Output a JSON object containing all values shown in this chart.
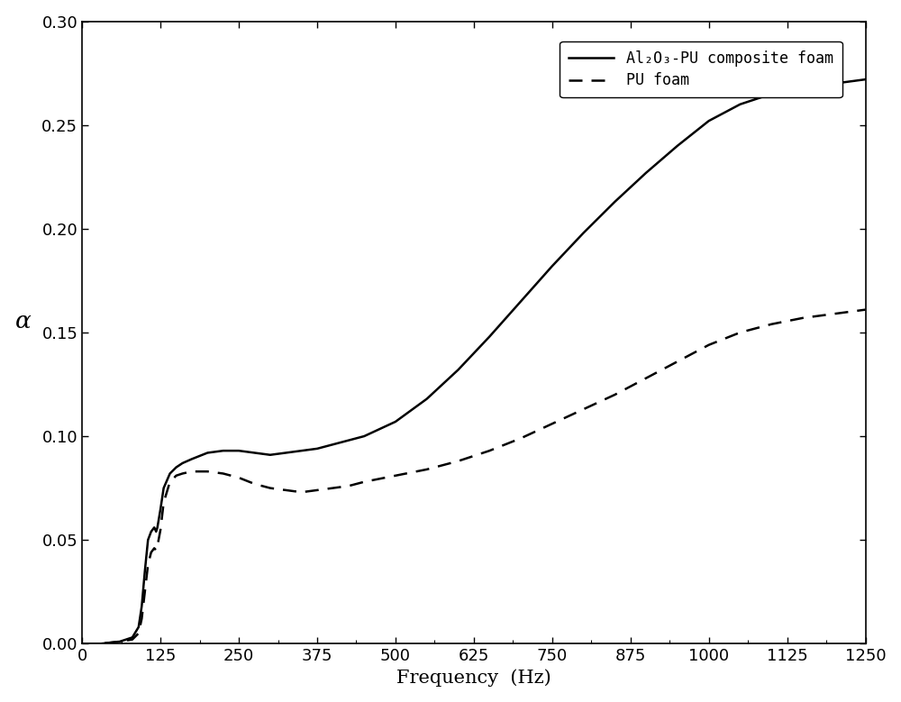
{
  "title": "",
  "xlabel": "Frequency  (Hz)",
  "ylabel": "α",
  "xlim": [
    0,
    1250
  ],
  "ylim": [
    0.0,
    0.3
  ],
  "xticks": [
    0,
    125,
    250,
    375,
    500,
    625,
    750,
    875,
    1000,
    1125,
    1250
  ],
  "yticks": [
    0.0,
    0.05,
    0.1,
    0.15,
    0.2,
    0.25,
    0.3
  ],
  "legend_labels": [
    "Al₂O₃-PU composite foam",
    "PU foam"
  ],
  "line_color": "#000000",
  "background_color": "#ffffff",
  "composite_x": [
    0,
    30,
    60,
    80,
    90,
    95,
    100,
    105,
    110,
    115,
    118,
    120,
    125,
    130,
    140,
    150,
    160,
    175,
    200,
    225,
    250,
    275,
    300,
    325,
    350,
    375,
    400,
    425,
    450,
    500,
    550,
    600,
    650,
    700,
    750,
    800,
    850,
    900,
    950,
    1000,
    1050,
    1100,
    1150,
    1200,
    1250
  ],
  "composite_y": [
    0.0,
    0.0,
    0.001,
    0.003,
    0.008,
    0.018,
    0.035,
    0.05,
    0.054,
    0.056,
    0.054,
    0.056,
    0.065,
    0.075,
    0.082,
    0.085,
    0.087,
    0.089,
    0.092,
    0.093,
    0.093,
    0.092,
    0.091,
    0.092,
    0.093,
    0.094,
    0.096,
    0.098,
    0.1,
    0.107,
    0.118,
    0.132,
    0.148,
    0.165,
    0.182,
    0.198,
    0.213,
    0.227,
    0.24,
    0.252,
    0.26,
    0.265,
    0.268,
    0.27,
    0.272
  ],
  "pu_x": [
    0,
    30,
    60,
    80,
    90,
    95,
    100,
    105,
    110,
    115,
    118,
    120,
    125,
    130,
    140,
    150,
    160,
    175,
    200,
    225,
    250,
    275,
    300,
    325,
    350,
    375,
    400,
    425,
    450,
    500,
    550,
    600,
    650,
    700,
    750,
    800,
    850,
    900,
    950,
    1000,
    1050,
    1100,
    1150,
    1200,
    1250
  ],
  "pu_y": [
    0.0,
    0.0,
    0.001,
    0.002,
    0.005,
    0.012,
    0.025,
    0.038,
    0.044,
    0.046,
    0.045,
    0.047,
    0.055,
    0.068,
    0.078,
    0.081,
    0.082,
    0.083,
    0.083,
    0.082,
    0.08,
    0.077,
    0.075,
    0.074,
    0.073,
    0.074,
    0.075,
    0.076,
    0.078,
    0.081,
    0.084,
    0.088,
    0.093,
    0.099,
    0.106,
    0.113,
    0.12,
    0.128,
    0.136,
    0.144,
    0.15,
    0.154,
    0.157,
    0.159,
    0.161
  ],
  "linewidth": 1.8,
  "fontsize_label": 15,
  "fontsize_tick": 13,
  "fontsize_legend": 12
}
